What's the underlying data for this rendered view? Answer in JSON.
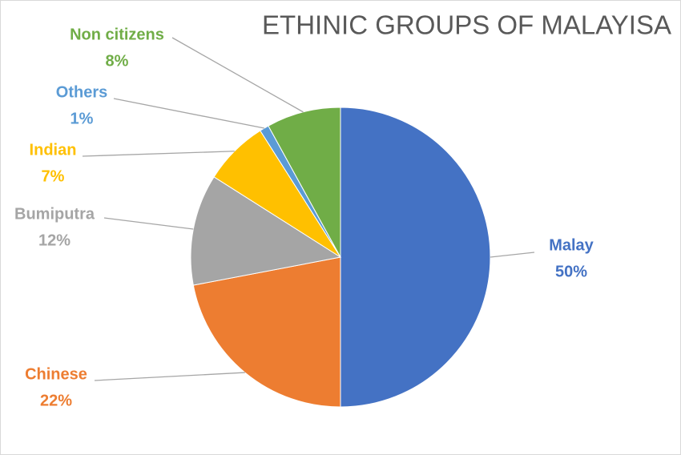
{
  "chart_data": {
    "type": "pie",
    "title": "ETHINIC GROUPS OF MALAYISA",
    "categories": [
      "Malay",
      "Chinese",
      "Bumiputra",
      "Indian",
      "Others",
      "Non citizens"
    ],
    "values": [
      50,
      22,
      12,
      7,
      1,
      8
    ],
    "value_labels": [
      "50%",
      "22%",
      "12%",
      "7%",
      "1%",
      "8%"
    ],
    "colors": [
      "#4472c4",
      "#ed7d31",
      "#a5a5a5",
      "#ffc000",
      "#5b9bd5",
      "#70ad47"
    ]
  }
}
